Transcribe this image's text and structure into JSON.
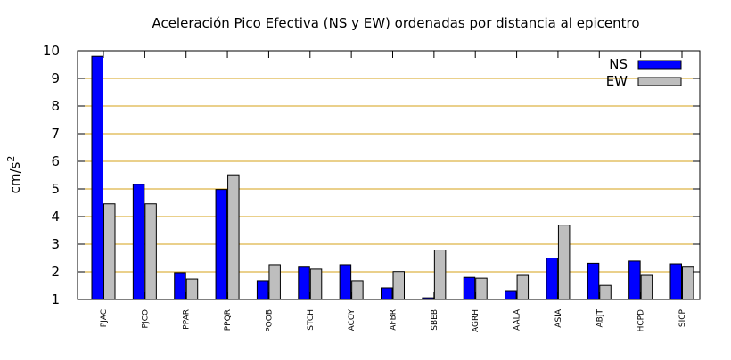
{
  "chart_data": {
    "type": "bar",
    "title": "Aceleración Pico Efectiva (NS y EW) ordenadas por distancia al epicentro",
    "ylabel": "cm/s",
    "ylabel_superscript": "2",
    "xlabel": "",
    "ylim": [
      1,
      10
    ],
    "yticks": [
      "1",
      "2",
      "3",
      "4",
      "5",
      "6",
      "7",
      "8",
      "9",
      "10"
    ],
    "grid": true,
    "legend_position": "top-right",
    "categories": [
      "PJAC",
      "PJCO",
      "PPAR",
      "PPQR",
      "POOB",
      "STCH",
      "ACOY",
      "AFBR",
      "SBEB",
      "AGRH",
      "AALA",
      "ASIA",
      "ABJT",
      "HCPD",
      "SICP"
    ],
    "series": [
      {
        "name": "NS",
        "color": "#0000ff",
        "values": [
          9.8,
          5.17,
          1.97,
          4.98,
          1.68,
          2.17,
          2.26,
          1.42,
          1.06,
          1.8,
          1.29,
          2.5,
          2.31,
          2.39,
          2.29
        ]
      },
      {
        "name": "EW",
        "color": "#bebebe",
        "values": [
          4.46,
          4.46,
          1.74,
          5.51,
          2.26,
          2.1,
          1.68,
          2.01,
          2.79,
          1.77,
          1.87,
          3.69,
          1.51,
          1.87,
          2.17
        ]
      }
    ],
    "colors": {
      "grid": "#d4a017",
      "axis": "#000000"
    }
  }
}
